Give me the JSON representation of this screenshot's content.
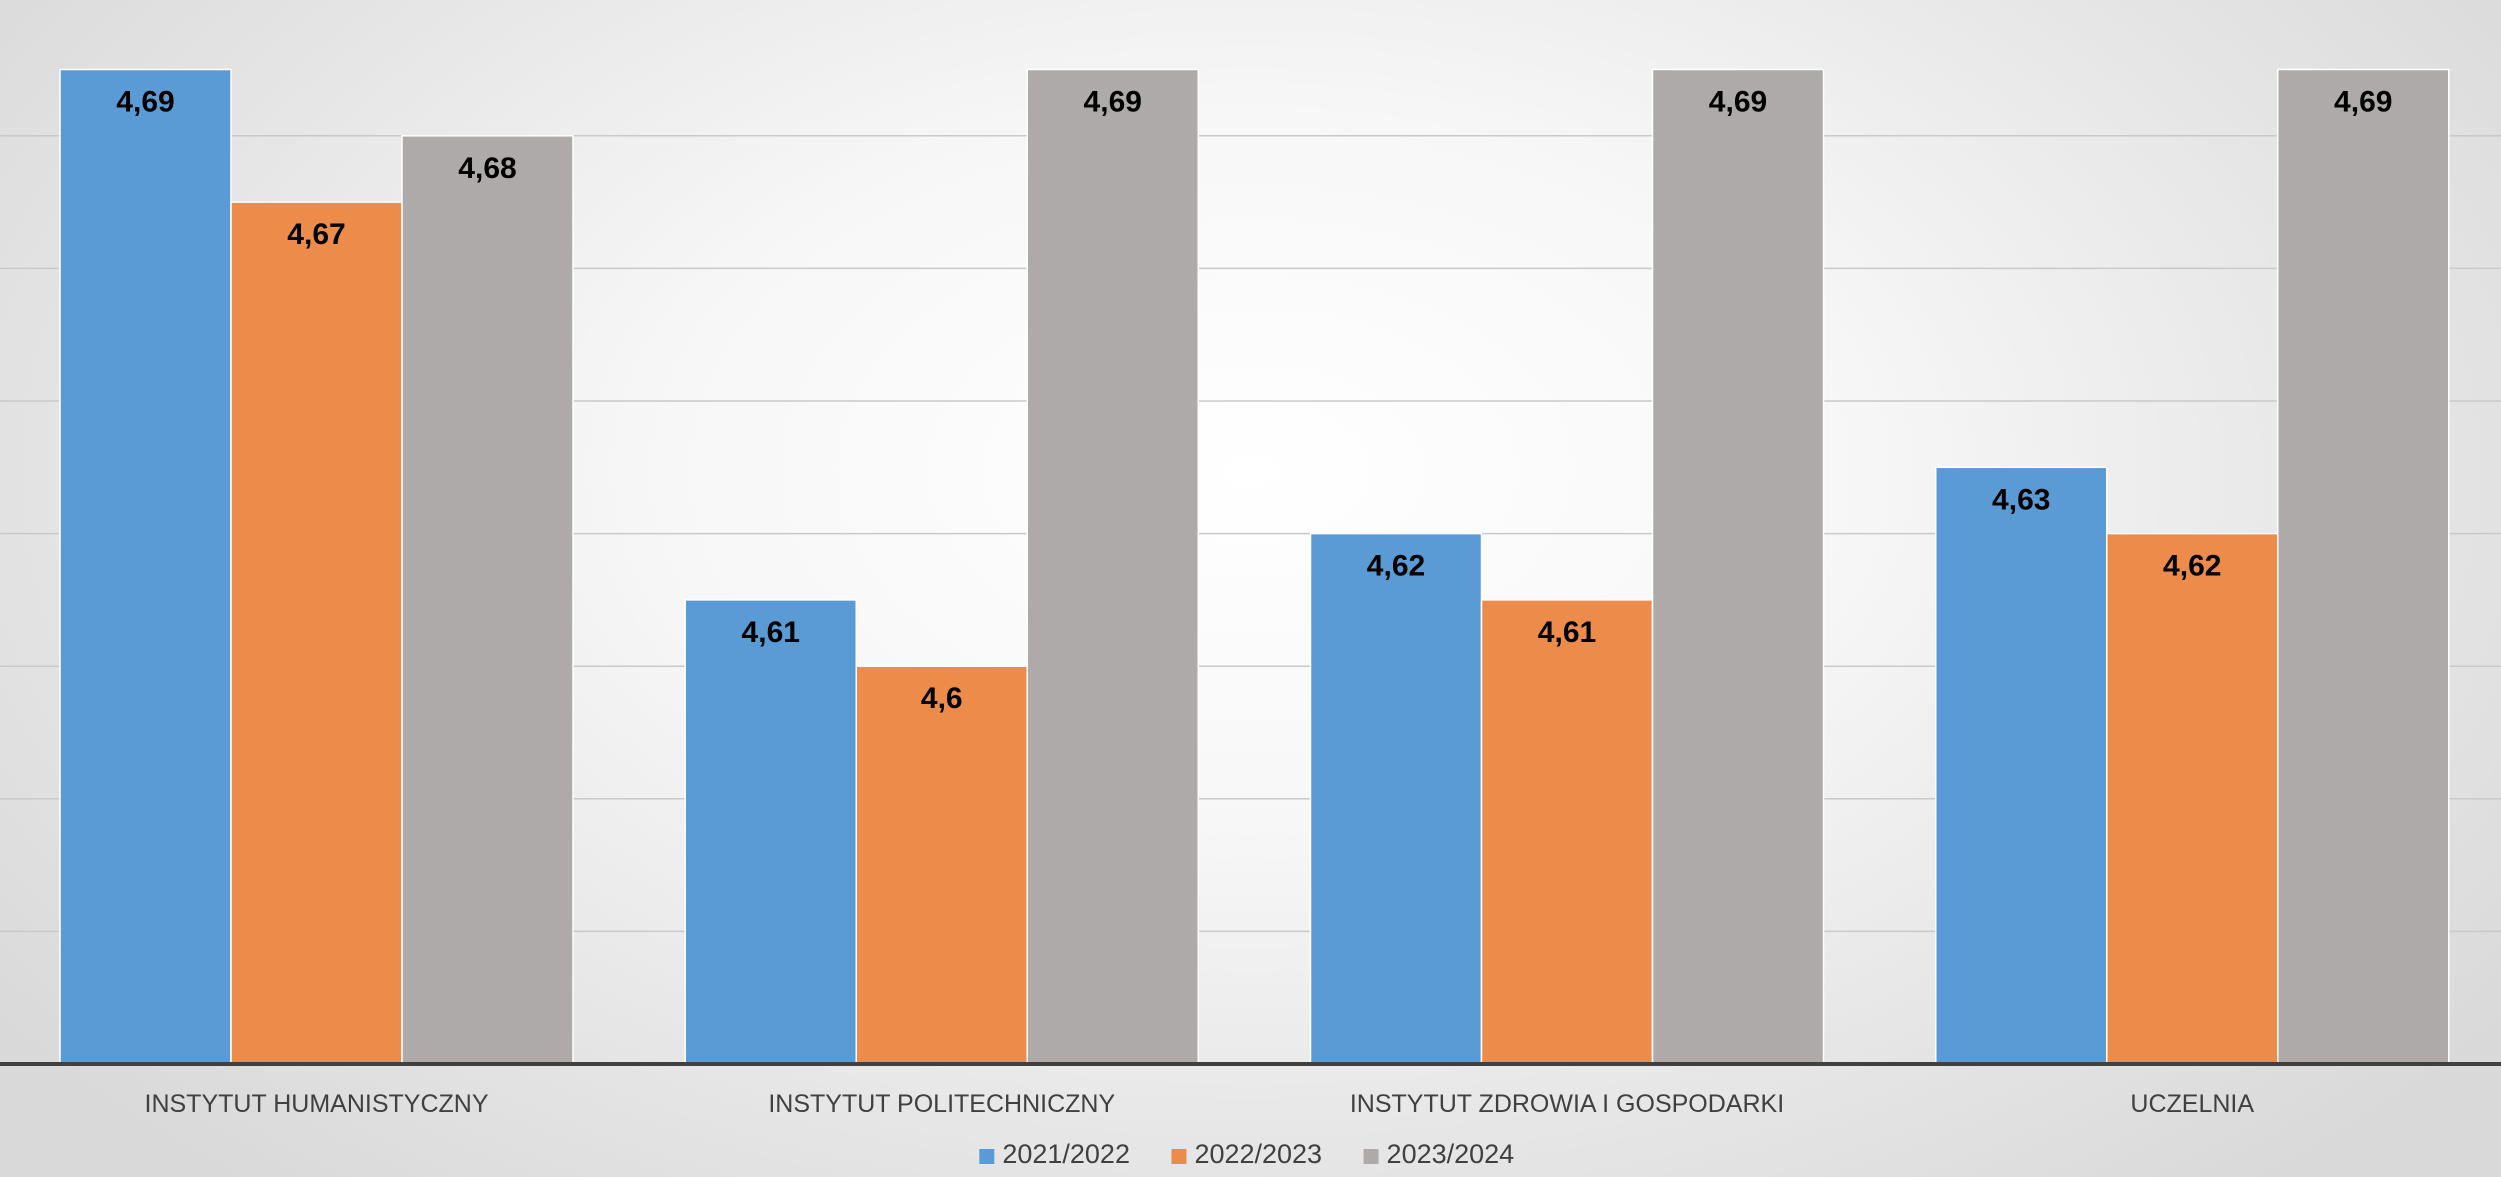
{
  "chart_data": {
    "type": "bar",
    "categories": [
      "INSTYTUT HUMANISTYCZNY",
      "INSTYTUT POLITECHNICZNY",
      "INSTYTUT ZDROWIA I GOSPODARKI",
      "UCZELNIA"
    ],
    "series": [
      {
        "name": "2021/2022",
        "color": "#5b9bd5",
        "values": [
          4.69,
          4.61,
          4.62,
          4.63
        ],
        "labels": [
          "4,69",
          "4,61",
          "4,62",
          "4,63"
        ]
      },
      {
        "name": "2022/2023",
        "color": "#ed8b4b",
        "values": [
          4.67,
          4.6,
          4.61,
          4.62
        ],
        "labels": [
          "4,67",
          "4,6",
          "4,61",
          "4,62"
        ]
      },
      {
        "name": "2023/2024",
        "color": "#aeaaa9",
        "values": [
          4.68,
          4.69,
          4.69,
          4.69
        ],
        "labels": [
          "4,68",
          "4,69",
          "4,69",
          "4,69"
        ]
      }
    ],
    "ylim": [
      4.54,
      4.69
    ],
    "grid": true,
    "legend": "bottom-center",
    "title": "",
    "xlabel": "",
    "ylabel": ""
  }
}
